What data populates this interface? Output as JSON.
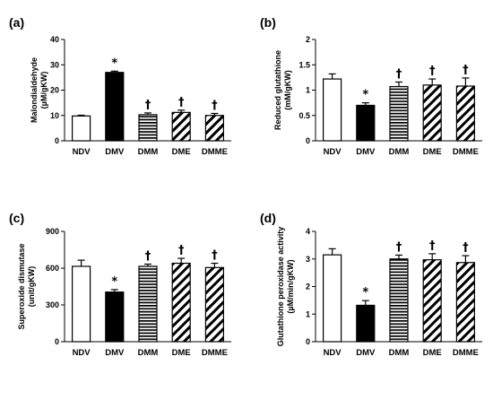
{
  "chart_data": [
    {
      "type": "bar",
      "panel_label": "(a)",
      "ylabel_line1": "Malondialdehyde",
      "ylabel_line2": "(µM/gKW)",
      "categories": [
        "NDV",
        "DMV",
        "DMM",
        "DME",
        "DMME"
      ],
      "values": [
        9.8,
        27.0,
        10.3,
        11.2,
        10.0
      ],
      "errors": [
        0.3,
        0.5,
        0.7,
        0.9,
        0.8
      ],
      "fills": [
        "white",
        "black",
        "hstripe",
        "diag",
        "diag"
      ],
      "markers": [
        "",
        "*",
        "†",
        "†",
        "†"
      ],
      "ylim": [
        0,
        40
      ],
      "yticks": [
        "0",
        "10",
        "20",
        "30",
        "40"
      ]
    },
    {
      "type": "bar",
      "panel_label": "(b)",
      "ylabel_line1": "Reduced glutathione",
      "ylabel_line2": "(mM/gKW)",
      "categories": [
        "NDV",
        "DMV",
        "DMM",
        "DME",
        "DMME"
      ],
      "values": [
        1.22,
        0.7,
        1.07,
        1.1,
        1.08
      ],
      "errors": [
        0.1,
        0.05,
        0.09,
        0.12,
        0.16
      ],
      "fills": [
        "white",
        "black",
        "hstripe",
        "diag",
        "diag"
      ],
      "markers": [
        "",
        "*",
        "†",
        "†",
        "†"
      ],
      "ylim": [
        0,
        2
      ],
      "yticks": [
        "0",
        "0.5",
        "1",
        "1.5",
        "2"
      ]
    },
    {
      "type": "bar",
      "panel_label": "(c)",
      "ylabel_line1": "Superoxide dismutase",
      "ylabel_line2": "(unit/gKW)",
      "categories": [
        "NDV",
        "DMV",
        "DMM",
        "DME",
        "DMME"
      ],
      "values": [
        615,
        405,
        615,
        640,
        605
      ],
      "errors": [
        50,
        20,
        18,
        40,
        35
      ],
      "fills": [
        "white",
        "black",
        "hstripe",
        "diag",
        "diag"
      ],
      "markers": [
        "",
        "*",
        "†",
        "†",
        "†"
      ],
      "ylim": [
        0,
        900
      ],
      "yticks": [
        "0",
        "300",
        "600",
        "900"
      ]
    },
    {
      "type": "bar",
      "panel_label": "(d)",
      "ylabel_line1": "Glutathione peroxidase activity",
      "ylabel_line2": "(µM/min/gKW)",
      "categories": [
        "NDV",
        "DMV",
        "DMM",
        "DME",
        "DMME"
      ],
      "values": [
        3.15,
        1.32,
        3.0,
        2.97,
        2.87
      ],
      "errors": [
        0.22,
        0.17,
        0.14,
        0.22,
        0.25
      ],
      "fills": [
        "white",
        "black",
        "hstripe",
        "diag",
        "diag"
      ],
      "markers": [
        "",
        "*",
        "†",
        "†",
        "†"
      ],
      "ylim": [
        0,
        4
      ],
      "yticks": [
        "0",
        "1",
        "2",
        "3",
        "4"
      ]
    }
  ]
}
